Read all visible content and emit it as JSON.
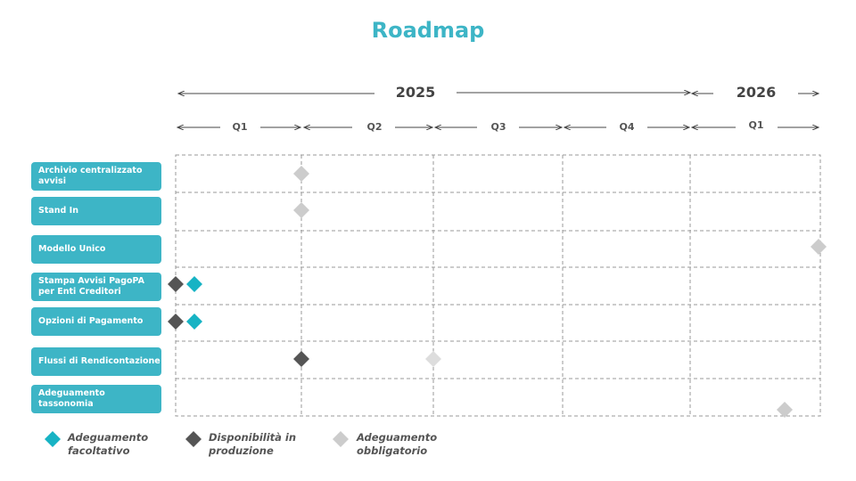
{
  "header": {
    "title": "Roadmap"
  },
  "timeline": {
    "years": [
      "2025",
      "2026"
    ],
    "quarters": [
      "Q1",
      "Q2",
      "Q3",
      "Q4",
      "Q1"
    ]
  },
  "rows": [
    "Archivio centralizzato avvisi",
    "Stand In",
    "Modello Unico",
    "Stampa Avvisi PagoPA per Enti Creditori",
    "Opzioni di Pagamento",
    "Flussi di Rendicontazione",
    "Adeguamento tassonomia"
  ],
  "legend": [
    "Adeguamento facoltativo",
    "Disponibilità in produzione",
    "Adeguamento obbligatorio"
  ]
}
